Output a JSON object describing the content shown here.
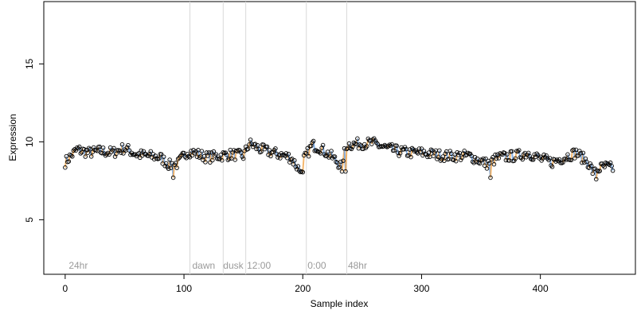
{
  "chart_data": {
    "type": "scatter",
    "title": "",
    "xlabel": "Sample index",
    "ylabel": "Expression",
    "xlim": [
      -18,
      480
    ],
    "ylim": [
      1.5,
      19
    ],
    "xticks": [
      0,
      100,
      200,
      300,
      400
    ],
    "xtick_labels": [
      "0",
      "100",
      "200",
      "300",
      "400"
    ],
    "yticks": [
      5,
      10,
      15
    ],
    "ytick_labels": [
      "5",
      "10",
      "15"
    ],
    "grid": false,
    "colors": {
      "blue_segment": "#6a9fe0",
      "orange_segment": "#f2a54a",
      "point_stroke": "#000000",
      "vline": "#d9d9d9",
      "label": "#9a9a9a"
    },
    "vlines": [
      {
        "x": 105,
        "label": ""
      },
      {
        "x": 133,
        "label": ""
      },
      {
        "x": 152,
        "label": ""
      },
      {
        "x": 203,
        "label": ""
      },
      {
        "x": 237,
        "label": ""
      }
    ],
    "region_labels": [
      {
        "x": 3,
        "label": "24hr"
      },
      {
        "x": 107,
        "label": "dawn"
      },
      {
        "x": 133,
        "label": "dusk"
      },
      {
        "x": 153,
        "label": "12:00"
      },
      {
        "x": 204,
        "label": "0:00"
      },
      {
        "x": 238,
        "label": "48hr"
      }
    ],
    "n_points": 462,
    "series_note": "",
    "points": []
  }
}
